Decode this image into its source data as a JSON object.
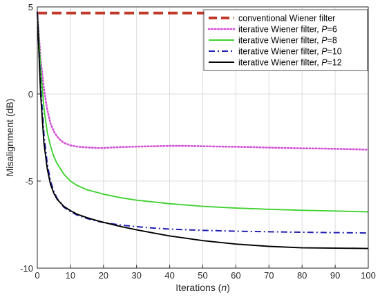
{
  "chart_data": {
    "type": "line",
    "xlabel": "Iterations",
    "xlabel_var": "n",
    "ylabel": "Misalignment (dB)",
    "xlim": [
      0,
      100
    ],
    "ylim": [
      -10,
      5
    ],
    "xticks": [
      0,
      10,
      20,
      30,
      40,
      50,
      60,
      70,
      80,
      90,
      100
    ],
    "yticks": [
      -10,
      -5,
      0,
      5
    ],
    "grid": true,
    "legend_position": "top-right",
    "series": [
      {
        "name": "conventional Wiener filter",
        "color": "#c0392b",
        "style": "dashed-thick",
        "x": [
          0,
          100
        ],
        "y": [
          4.65,
          4.65
        ]
      },
      {
        "name": "iterative Wiener filter, ",
        "param": "P",
        "param_value": "=6",
        "color": "#d24fd6",
        "style": "dotted",
        "x": [
          0,
          1,
          2,
          3,
          4,
          5,
          6,
          7,
          8,
          10,
          12,
          15,
          18,
          20,
          25,
          30,
          35,
          40,
          45,
          50,
          55,
          60,
          65,
          70,
          75,
          80,
          85,
          90,
          95,
          100
        ],
        "y": [
          4.7,
          2.0,
          0.3,
          -0.9,
          -1.7,
          -2.15,
          -2.45,
          -2.65,
          -2.8,
          -2.95,
          -3.02,
          -3.07,
          -3.1,
          -3.1,
          -3.05,
          -3.02,
          -3.0,
          -2.98,
          -2.98,
          -3.0,
          -3.02,
          -3.03,
          -3.05,
          -3.08,
          -3.1,
          -3.12,
          -3.13,
          -3.15,
          -3.17,
          -3.2
        ]
      },
      {
        "name": "iterative Wiener filter, ",
        "param": "P",
        "param_value": "=8",
        "color": "#3fd12f",
        "style": "solid",
        "x": [
          0,
          1,
          2,
          3,
          4,
          5,
          6,
          8,
          10,
          12,
          15,
          18,
          20,
          25,
          30,
          35,
          40,
          50,
          60,
          70,
          80,
          90,
          100
        ],
        "y": [
          4.7,
          1.5,
          -0.8,
          -2.2,
          -3.0,
          -3.6,
          -4.0,
          -4.6,
          -5.0,
          -5.25,
          -5.5,
          -5.65,
          -5.75,
          -5.95,
          -6.1,
          -6.2,
          -6.3,
          -6.45,
          -6.55,
          -6.62,
          -6.68,
          -6.72,
          -6.77
        ]
      },
      {
        "name": "iterative Wiener filter, ",
        "param": "P",
        "param_value": "=10",
        "color": "#1f1fb4",
        "style": "dashdot",
        "x": [
          0,
          1,
          2,
          3,
          4,
          5,
          6,
          8,
          10,
          12,
          15,
          18,
          20,
          25,
          30,
          35,
          40,
          50,
          60,
          70,
          80,
          90,
          100
        ],
        "y": [
          4.7,
          0.5,
          -2.3,
          -4.0,
          -5.0,
          -5.6,
          -6.0,
          -6.5,
          -6.75,
          -6.95,
          -7.15,
          -7.3,
          -7.38,
          -7.52,
          -7.62,
          -7.7,
          -7.76,
          -7.83,
          -7.88,
          -7.91,
          -7.94,
          -7.96,
          -7.98
        ]
      },
      {
        "name": "iterative Wiener filter, ",
        "param": "P",
        "param_value": "=12",
        "color": "#000000",
        "style": "solid",
        "x": [
          0,
          1,
          2,
          3,
          4,
          5,
          6,
          8,
          10,
          12,
          15,
          18,
          20,
          25,
          30,
          35,
          40,
          50,
          60,
          70,
          80,
          90,
          100
        ],
        "y": [
          4.7,
          0.0,
          -2.8,
          -4.3,
          -5.2,
          -5.7,
          -6.05,
          -6.45,
          -6.7,
          -6.9,
          -7.1,
          -7.27,
          -7.37,
          -7.6,
          -7.8,
          -7.98,
          -8.15,
          -8.42,
          -8.62,
          -8.75,
          -8.83,
          -8.85,
          -8.87
        ]
      }
    ]
  }
}
